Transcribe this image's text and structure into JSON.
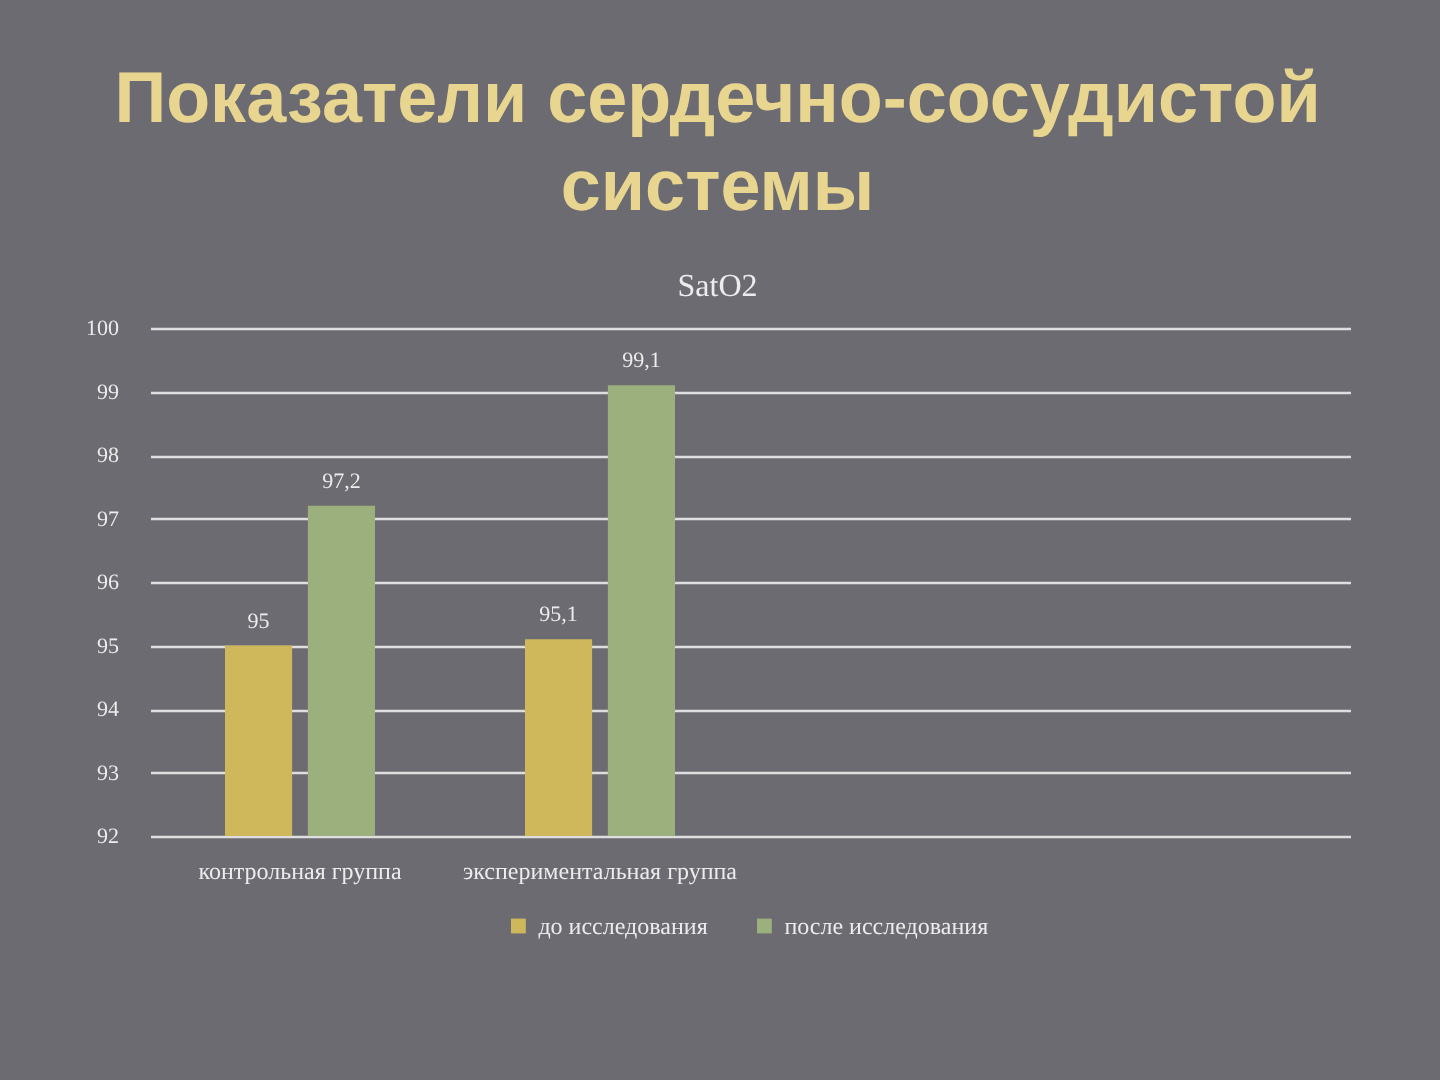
{
  "chart_data": {
    "type": "bar",
    "title": "Показатели сердечно-сосудистой системы",
    "subtitle": "SatO2",
    "categories": [
      "контрольная группа",
      "экспериментальная группа",
      null,
      null
    ],
    "series": [
      {
        "name": "до исследования",
        "color": "#cfb75c",
        "values": [
          95,
          95.1,
          null,
          null
        ],
        "value_labels": [
          "95",
          "95,1",
          null,
          null
        ]
      },
      {
        "name": "после исследования",
        "color": "#9bb07c",
        "values": [
          97.2,
          99.1,
          null,
          null
        ],
        "value_labels": [
          "97,2",
          "99,1",
          null,
          null
        ]
      }
    ],
    "ylim": [
      92,
      100
    ],
    "yticks": [
      92,
      93,
      94,
      95,
      96,
      97,
      98,
      99,
      100
    ],
    "grid": "y",
    "legend": "bottom"
  }
}
